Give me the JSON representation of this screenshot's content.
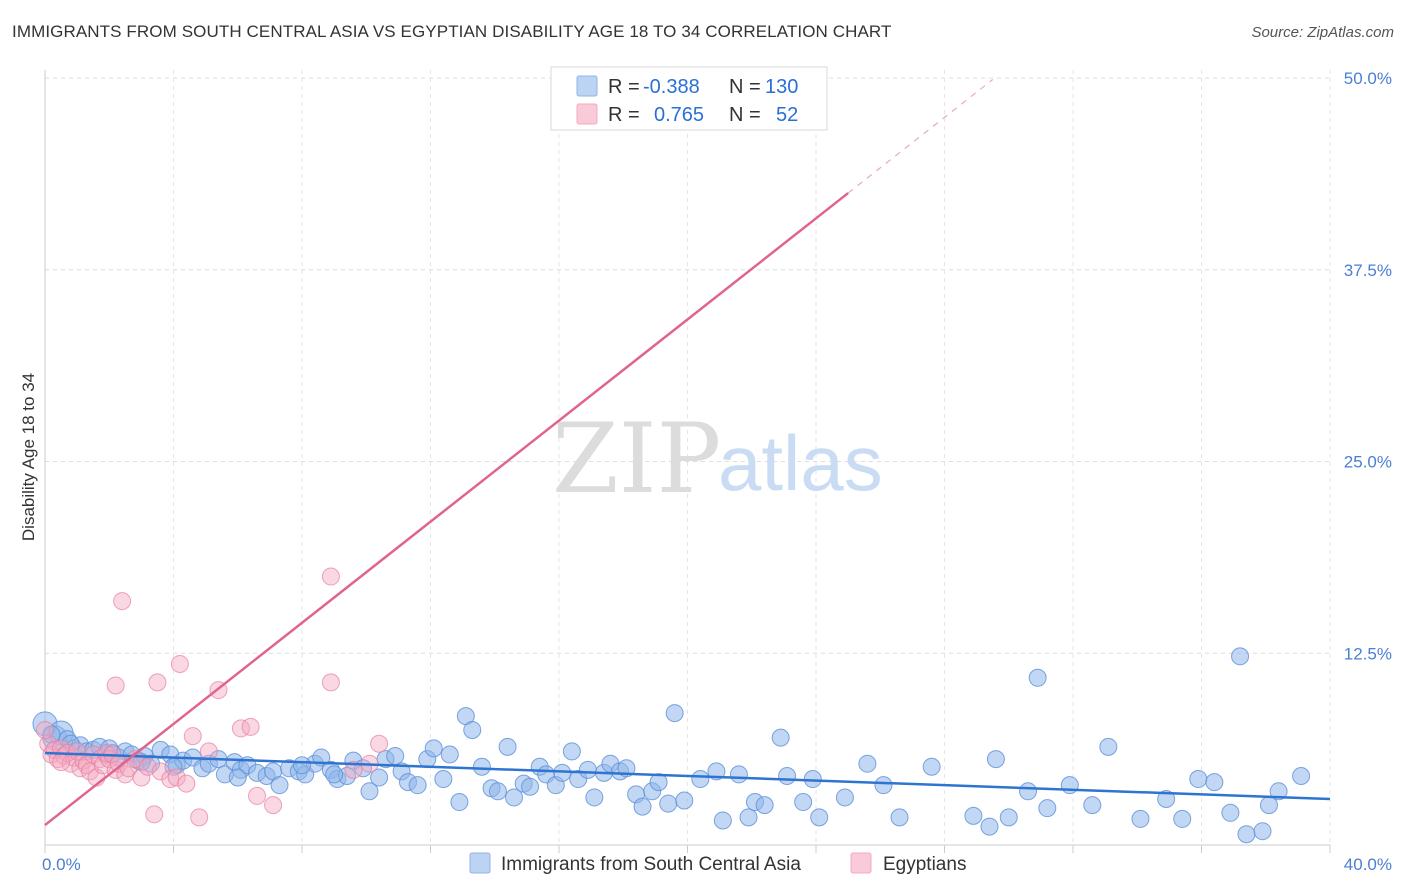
{
  "title": "IMMIGRANTS FROM SOUTH CENTRAL ASIA VS EGYPTIAN DISABILITY AGE 18 TO 34 CORRELATION CHART",
  "source": "Source: ZipAtlas.com",
  "watermark": {
    "zip": "ZIP",
    "atlas": "atlas"
  },
  "colors": {
    "blue": "#8fb6ea",
    "blue_stroke": "#5b8fd9",
    "pink": "#f4a9c0",
    "pink_stroke": "#e57ea0",
    "blue_line": "#2e74d1",
    "pink_line": "#e0648e",
    "tick_text": "#4a7fd4"
  },
  "legend": {
    "rows": [
      {
        "r_label": "R =",
        "r_value": "-0.388",
        "n_label": "N =",
        "n_value": "130"
      },
      {
        "r_label": "R =",
        "r_value": "0.765",
        "n_label": "N =",
        "n_value": "52"
      }
    ]
  },
  "bottom_legend": [
    {
      "label": "Immigrants from South Central Asia"
    },
    {
      "label": "Egyptians"
    }
  ],
  "chart_data": {
    "type": "scatter",
    "xlabel": "",
    "ylabel": "Disability Age 18 to 34",
    "xlim": [
      0,
      40
    ],
    "ylim": [
      0,
      52
    ],
    "x_tick_labels": [
      "0.0%",
      "40.0%"
    ],
    "y_ticks": [
      12.5,
      25.0,
      37.5,
      50.0
    ],
    "y_tick_labels": [
      "12.5%",
      "25.0%",
      "37.5%",
      "50.0%"
    ],
    "grid": true,
    "legend_position": "top-center",
    "series": [
      {
        "name": "Immigrants from South Central Asia",
        "trend": {
          "x0": 0,
          "y0": 6.0,
          "x1": 40,
          "y1": 3.0
        },
        "points": [
          [
            0.0,
            7.9
          ],
          [
            0.3,
            7.0
          ],
          [
            0.5,
            7.3
          ],
          [
            0.7,
            6.9
          ],
          [
            0.9,
            6.3
          ],
          [
            1.1,
            6.5
          ],
          [
            1.3,
            6.1
          ],
          [
            1.5,
            6.2
          ],
          [
            1.7,
            6.4
          ],
          [
            1.9,
            5.9
          ],
          [
            2.1,
            6.0
          ],
          [
            2.3,
            5.7
          ],
          [
            2.5,
            6.1
          ],
          [
            2.7,
            5.9
          ],
          [
            2.9,
            5.5
          ],
          [
            3.1,
            5.8
          ],
          [
            3.3,
            5.3
          ],
          [
            3.6,
            6.2
          ],
          [
            3.9,
            5.9
          ],
          [
            4.1,
            5.2
          ],
          [
            4.3,
            5.5
          ],
          [
            4.6,
            5.7
          ],
          [
            4.9,
            5.0
          ],
          [
            5.1,
            5.3
          ],
          [
            5.4,
            5.6
          ],
          [
            5.6,
            4.6
          ],
          [
            5.9,
            5.4
          ],
          [
            6.1,
            4.9
          ],
          [
            6.3,
            5.2
          ],
          [
            6.6,
            4.7
          ],
          [
            6.9,
            4.5
          ],
          [
            7.1,
            4.8
          ],
          [
            7.3,
            3.9
          ],
          [
            7.6,
            5.0
          ],
          [
            7.9,
            4.8
          ],
          [
            8.1,
            4.6
          ],
          [
            8.4,
            5.3
          ],
          [
            8.6,
            5.7
          ],
          [
            8.9,
            4.9
          ],
          [
            9.1,
            4.3
          ],
          [
            9.4,
            4.5
          ],
          [
            9.6,
            5.5
          ],
          [
            9.9,
            5.0
          ],
          [
            10.1,
            3.5
          ],
          [
            10.4,
            4.4
          ],
          [
            10.6,
            5.6
          ],
          [
            10.9,
            5.8
          ],
          [
            11.1,
            4.8
          ],
          [
            11.3,
            4.1
          ],
          [
            11.6,
            3.9
          ],
          [
            11.9,
            5.6
          ],
          [
            12.1,
            6.3
          ],
          [
            12.4,
            4.3
          ],
          [
            12.6,
            5.9
          ],
          [
            12.9,
            2.8
          ],
          [
            13.1,
            8.4
          ],
          [
            13.3,
            7.5
          ],
          [
            13.6,
            5.1
          ],
          [
            13.9,
            3.7
          ],
          [
            14.1,
            3.5
          ],
          [
            14.4,
            6.4
          ],
          [
            14.6,
            3.1
          ],
          [
            14.9,
            4.0
          ],
          [
            15.1,
            3.8
          ],
          [
            15.4,
            5.1
          ],
          [
            15.6,
            4.6
          ],
          [
            15.9,
            3.9
          ],
          [
            16.1,
            4.7
          ],
          [
            16.4,
            6.1
          ],
          [
            16.6,
            4.3
          ],
          [
            16.9,
            4.9
          ],
          [
            17.1,
            3.1
          ],
          [
            17.4,
            4.7
          ],
          [
            17.6,
            5.3
          ],
          [
            17.9,
            4.8
          ],
          [
            18.1,
            5.0
          ],
          [
            18.4,
            3.3
          ],
          [
            18.6,
            2.5
          ],
          [
            18.9,
            3.5
          ],
          [
            19.1,
            4.1
          ],
          [
            19.4,
            2.7
          ],
          [
            19.6,
            8.6
          ],
          [
            19.9,
            2.9
          ],
          [
            20.4,
            4.3
          ],
          [
            20.9,
            4.8
          ],
          [
            21.1,
            1.6
          ],
          [
            21.6,
            4.6
          ],
          [
            21.9,
            1.8
          ],
          [
            22.1,
            2.8
          ],
          [
            22.4,
            2.6
          ],
          [
            22.9,
            7.0
          ],
          [
            23.1,
            4.5
          ],
          [
            23.6,
            2.8
          ],
          [
            23.9,
            4.3
          ],
          [
            24.1,
            1.8
          ],
          [
            24.9,
            3.1
          ],
          [
            25.6,
            5.3
          ],
          [
            26.6,
            1.8
          ],
          [
            30.0,
            1.8
          ],
          [
            29.4,
            1.2
          ],
          [
            30.6,
            3.5
          ],
          [
            31.2,
            2.4
          ],
          [
            31.9,
            3.9
          ],
          [
            33.1,
            6.4
          ],
          [
            34.1,
            1.7
          ],
          [
            35.4,
            1.7
          ],
          [
            35.9,
            4.3
          ],
          [
            36.4,
            4.1
          ],
          [
            37.4,
            0.7
          ],
          [
            37.9,
            0.9
          ],
          [
            38.1,
            2.6
          ],
          [
            38.4,
            3.5
          ],
          [
            39.1,
            4.5
          ],
          [
            37.2,
            12.3
          ],
          [
            30.9,
            10.9
          ],
          [
            29.6,
            5.6
          ],
          [
            26.1,
            3.9
          ],
          [
            27.6,
            5.1
          ],
          [
            28.9,
            1.9
          ],
          [
            32.6,
            2.6
          ],
          [
            34.9,
            3.0
          ],
          [
            36.9,
            2.1
          ],
          [
            0.2,
            7.2
          ],
          [
            0.8,
            6.6
          ],
          [
            2.0,
            6.3
          ],
          [
            3.0,
            5.4
          ],
          [
            4.0,
            5.1
          ],
          [
            6.0,
            4.4
          ],
          [
            8.0,
            5.2
          ],
          [
            9.0,
            4.6
          ]
        ]
      },
      {
        "name": "Egyptians",
        "trend": {
          "x0": 0,
          "y0": 1.3,
          "x1": 25,
          "y1": 42.5,
          "dash_x1": 29.5,
          "dash_y1": 49.9
        },
        "points": [
          [
            0.1,
            6.6
          ],
          [
            0.2,
            5.9
          ],
          [
            0.3,
            6.2
          ],
          [
            0.4,
            5.6
          ],
          [
            0.5,
            6.3
          ],
          [
            0.6,
            5.8
          ],
          [
            0.7,
            6.0
          ],
          [
            0.8,
            5.3
          ],
          [
            0.9,
            5.7
          ],
          [
            1.0,
            6.1
          ],
          [
            1.1,
            5.0
          ],
          [
            1.2,
            5.5
          ],
          [
            1.3,
            5.2
          ],
          [
            1.4,
            4.8
          ],
          [
            1.5,
            5.9
          ],
          [
            1.6,
            4.4
          ],
          [
            1.7,
            5.6
          ],
          [
            1.8,
            5.2
          ],
          [
            1.9,
            6.0
          ],
          [
            2.0,
            5.6
          ],
          [
            2.1,
            5.9
          ],
          [
            2.2,
            4.9
          ],
          [
            2.3,
            5.3
          ],
          [
            2.4,
            15.9
          ],
          [
            2.5,
            4.6
          ],
          [
            2.6,
            5.0
          ],
          [
            2.8,
            5.6
          ],
          [
            3.0,
            4.4
          ],
          [
            3.2,
            5.1
          ],
          [
            3.4,
            2.0
          ],
          [
            3.5,
            10.6
          ],
          [
            3.6,
            4.8
          ],
          [
            3.9,
            4.3
          ],
          [
            4.1,
            4.4
          ],
          [
            4.2,
            11.8
          ],
          [
            4.4,
            4.0
          ],
          [
            4.6,
            7.1
          ],
          [
            4.8,
            1.8
          ],
          [
            5.1,
            6.1
          ],
          [
            5.4,
            10.1
          ],
          [
            6.1,
            7.6
          ],
          [
            6.4,
            7.7
          ],
          [
            6.6,
            3.2
          ],
          [
            7.1,
            2.6
          ],
          [
            8.9,
            17.5
          ],
          [
            8.9,
            10.6
          ],
          [
            10.4,
            6.6
          ],
          [
            10.1,
            5.3
          ],
          [
            9.6,
            4.9
          ],
          [
            0.0,
            7.5
          ],
          [
            2.2,
            10.4
          ],
          [
            0.5,
            5.4
          ]
        ]
      }
    ]
  }
}
